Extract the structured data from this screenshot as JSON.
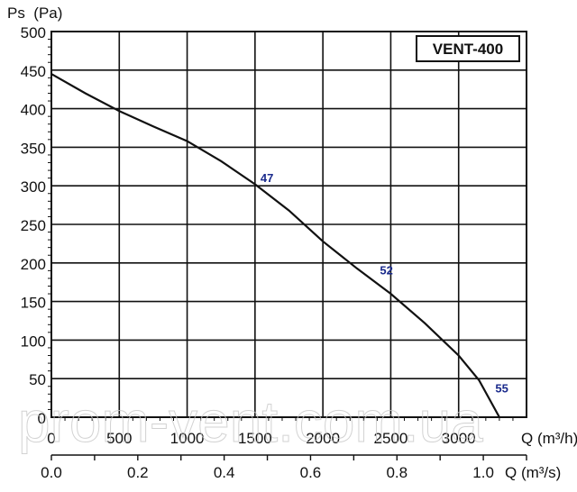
{
  "chart_data": {
    "type": "line",
    "title": "VENT-400",
    "ylabel": "Ps  (Pa)",
    "xlabel": "Q (m³/h)",
    "x2label": "Q (m³/s)",
    "xlim": [
      0,
      3500
    ],
    "ylim": [
      0,
      500
    ],
    "x2lim": [
      0,
      1.1
    ],
    "xticks": [
      0,
      500,
      1000,
      1500,
      2000,
      2500,
      3000
    ],
    "yticks": [
      0,
      50,
      100,
      150,
      200,
      250,
      300,
      350,
      400,
      450,
      500
    ],
    "x2ticks_labeled": [
      "0.0",
      "0.2",
      "0.4",
      "0.6",
      "0.8",
      "1.0"
    ],
    "x2ticks": [
      0,
      0.1,
      0.2,
      0.3,
      0.4,
      0.5,
      0.6,
      0.7,
      0.8,
      0.9,
      1.0,
      1.1
    ],
    "grid": true,
    "series": [
      {
        "name": "VENT-400",
        "x": [
          0,
          250,
          500,
          750,
          1000,
          1250,
          1500,
          1750,
          2000,
          2250,
          2500,
          2750,
          3000,
          3150,
          3300
        ],
        "y": [
          445,
          420,
          397,
          377,
          358,
          332,
          302,
          268,
          228,
          193,
          160,
          122,
          80,
          48,
          0
        ]
      }
    ],
    "annotations": [
      {
        "text": "47",
        "x": 1500,
        "y": 302
      },
      {
        "text": "52",
        "x": 2500,
        "y": 160
      },
      {
        "text": "55",
        "x": 3300,
        "y": 0
      }
    ],
    "colors": {
      "line": "#111111",
      "annotation": "#1a2a8c",
      "grid": "#111111"
    }
  },
  "watermark": "prom-vent.com.ua"
}
